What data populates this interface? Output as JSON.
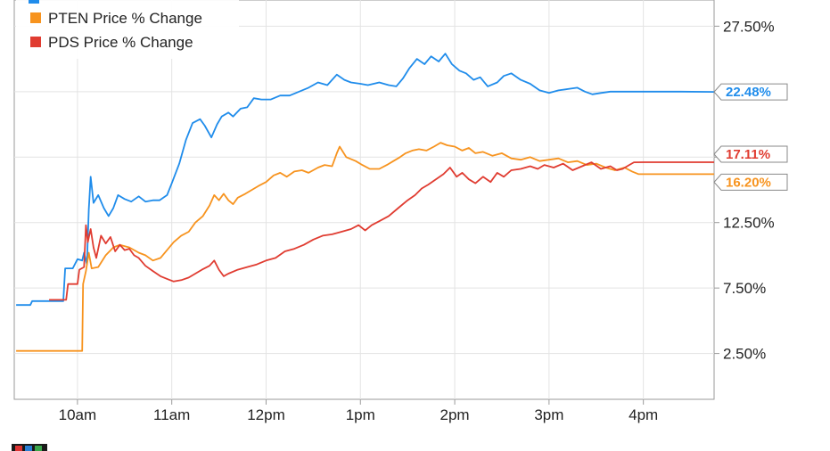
{
  "chart_data": {
    "type": "line",
    "title": "",
    "xlabel": "",
    "ylabel": "",
    "x_ticks": [
      "10am",
      "11am",
      "12pm",
      "1pm",
      "2pm",
      "3pm",
      "4pm"
    ],
    "y_ticks": [
      "2.50%",
      "7.50%",
      "12.50%",
      "17.50%",
      "22.50%",
      "27.50%"
    ],
    "ylim": [
      -1,
      29.5
    ],
    "xlim": [
      9.33,
      16.75
    ],
    "grid": true,
    "legend_position": "top-left",
    "series": [
      {
        "name": "",
        "color": "#1f8ceb",
        "end_value": 22.48,
        "end_label": "22.48%",
        "points": [
          [
            9.35,
            6.2
          ],
          [
            9.5,
            6.2
          ],
          [
            9.52,
            6.5
          ],
          [
            9.85,
            6.5
          ],
          [
            9.87,
            9.0
          ],
          [
            9.95,
            9.0
          ],
          [
            10.0,
            9.7
          ],
          [
            10.05,
            9.6
          ],
          [
            10.07,
            10.2
          ],
          [
            10.1,
            9.3
          ],
          [
            10.12,
            13.5
          ],
          [
            10.14,
            16.0
          ],
          [
            10.17,
            14.0
          ],
          [
            10.22,
            14.6
          ],
          [
            10.28,
            13.6
          ],
          [
            10.33,
            13.0
          ],
          [
            10.38,
            13.6
          ],
          [
            10.43,
            14.6
          ],
          [
            10.5,
            14.3
          ],
          [
            10.57,
            14.1
          ],
          [
            10.65,
            14.5
          ],
          [
            10.72,
            14.1
          ],
          [
            10.8,
            14.2
          ],
          [
            10.87,
            14.2
          ],
          [
            10.95,
            14.6
          ],
          [
            11.0,
            15.5
          ],
          [
            11.08,
            17.0
          ],
          [
            11.15,
            18.8
          ],
          [
            11.22,
            20.1
          ],
          [
            11.3,
            20.4
          ],
          [
            11.35,
            19.9
          ],
          [
            11.42,
            19.0
          ],
          [
            11.48,
            20.0
          ],
          [
            11.53,
            20.6
          ],
          [
            11.6,
            20.9
          ],
          [
            11.65,
            20.6
          ],
          [
            11.73,
            21.2
          ],
          [
            11.8,
            21.3
          ],
          [
            11.87,
            22.0
          ],
          [
            11.95,
            21.9
          ],
          [
            12.05,
            21.9
          ],
          [
            12.15,
            22.2
          ],
          [
            12.25,
            22.2
          ],
          [
            12.35,
            22.5
          ],
          [
            12.45,
            22.8
          ],
          [
            12.55,
            23.2
          ],
          [
            12.65,
            23.0
          ],
          [
            12.75,
            23.8
          ],
          [
            12.83,
            23.4
          ],
          [
            12.9,
            23.2
          ],
          [
            13.0,
            23.1
          ],
          [
            13.08,
            23.0
          ],
          [
            13.2,
            23.2
          ],
          [
            13.3,
            23.0
          ],
          [
            13.38,
            22.9
          ],
          [
            13.45,
            23.5
          ],
          [
            13.52,
            24.3
          ],
          [
            13.6,
            25.0
          ],
          [
            13.68,
            24.6
          ],
          [
            13.75,
            25.2
          ],
          [
            13.83,
            24.8
          ],
          [
            13.9,
            25.4
          ],
          [
            13.97,
            24.6
          ],
          [
            14.05,
            24.1
          ],
          [
            14.12,
            23.9
          ],
          [
            14.2,
            23.4
          ],
          [
            14.27,
            23.6
          ],
          [
            14.35,
            22.9
          ],
          [
            14.45,
            23.2
          ],
          [
            14.52,
            23.7
          ],
          [
            14.6,
            23.9
          ],
          [
            14.7,
            23.4
          ],
          [
            14.8,
            23.1
          ],
          [
            14.9,
            22.6
          ],
          [
            15.0,
            22.4
          ],
          [
            15.1,
            22.6
          ],
          [
            15.2,
            22.7
          ],
          [
            15.3,
            22.8
          ],
          [
            15.38,
            22.5
          ],
          [
            15.46,
            22.3
          ],
          [
            15.55,
            22.4
          ],
          [
            15.65,
            22.5
          ],
          [
            15.8,
            22.5
          ],
          [
            16.0,
            22.5
          ],
          [
            16.4,
            22.5
          ],
          [
            16.75,
            22.48
          ]
        ]
      },
      {
        "name": "PTEN Price % Change",
        "color": "#f7931e",
        "end_value": 16.2,
        "end_label": "16.20%",
        "points": [
          [
            9.35,
            2.7
          ],
          [
            10.05,
            2.7
          ],
          [
            10.06,
            7.8
          ],
          [
            10.09,
            8.8
          ],
          [
            10.12,
            10.2
          ],
          [
            10.15,
            9.0
          ],
          [
            10.22,
            9.1
          ],
          [
            10.3,
            10.0
          ],
          [
            10.38,
            10.6
          ],
          [
            10.45,
            10.8
          ],
          [
            10.55,
            10.6
          ],
          [
            10.65,
            10.2
          ],
          [
            10.72,
            10.0
          ],
          [
            10.8,
            9.6
          ],
          [
            10.88,
            9.8
          ],
          [
            10.95,
            10.4
          ],
          [
            11.02,
            11.0
          ],
          [
            11.1,
            11.5
          ],
          [
            11.18,
            11.8
          ],
          [
            11.25,
            12.5
          ],
          [
            11.33,
            13.0
          ],
          [
            11.4,
            13.8
          ],
          [
            11.45,
            14.6
          ],
          [
            11.5,
            14.2
          ],
          [
            11.55,
            14.7
          ],
          [
            11.6,
            14.2
          ],
          [
            11.65,
            13.9
          ],
          [
            11.7,
            14.4
          ],
          [
            11.78,
            14.7
          ],
          [
            11.85,
            15.0
          ],
          [
            11.92,
            15.3
          ],
          [
            12.0,
            15.6
          ],
          [
            12.08,
            16.1
          ],
          [
            12.15,
            16.3
          ],
          [
            12.22,
            16.0
          ],
          [
            12.3,
            16.4
          ],
          [
            12.38,
            16.5
          ],
          [
            12.45,
            16.3
          ],
          [
            12.55,
            16.7
          ],
          [
            12.62,
            16.9
          ],
          [
            12.7,
            16.8
          ],
          [
            12.75,
            17.8
          ],
          [
            12.78,
            18.3
          ],
          [
            12.85,
            17.5
          ],
          [
            12.95,
            17.2
          ],
          [
            13.02,
            16.9
          ],
          [
            13.1,
            16.6
          ],
          [
            13.2,
            16.6
          ],
          [
            13.28,
            16.9
          ],
          [
            13.35,
            17.2
          ],
          [
            13.42,
            17.5
          ],
          [
            13.48,
            17.8
          ],
          [
            13.55,
            18.0
          ],
          [
            13.62,
            18.1
          ],
          [
            13.7,
            18.0
          ],
          [
            13.78,
            18.3
          ],
          [
            13.85,
            18.6
          ],
          [
            13.92,
            18.4
          ],
          [
            14.0,
            18.3
          ],
          [
            14.08,
            18.0
          ],
          [
            14.15,
            18.2
          ],
          [
            14.22,
            17.8
          ],
          [
            14.3,
            17.9
          ],
          [
            14.4,
            17.6
          ],
          [
            14.5,
            17.8
          ],
          [
            14.6,
            17.4
          ],
          [
            14.7,
            17.3
          ],
          [
            14.8,
            17.5
          ],
          [
            14.9,
            17.2
          ],
          [
            15.0,
            17.3
          ],
          [
            15.1,
            17.4
          ],
          [
            15.2,
            17.1
          ],
          [
            15.3,
            17.2
          ],
          [
            15.4,
            16.9
          ],
          [
            15.5,
            17.0
          ],
          [
            15.6,
            16.7
          ],
          [
            15.7,
            16.5
          ],
          [
            15.8,
            16.7
          ],
          [
            15.88,
            16.4
          ],
          [
            15.95,
            16.2
          ],
          [
            16.0,
            16.2
          ],
          [
            16.4,
            16.2
          ],
          [
            16.75,
            16.2
          ]
        ]
      },
      {
        "name": "PDS Price % Change",
        "color": "#e03c31",
        "end_value": 17.11,
        "end_label": "17.11%",
        "points": [
          [
            9.7,
            6.6
          ],
          [
            9.88,
            6.6
          ],
          [
            9.9,
            7.8
          ],
          [
            10.0,
            7.8
          ],
          [
            10.02,
            8.9
          ],
          [
            10.07,
            9.1
          ],
          [
            10.09,
            12.3
          ],
          [
            10.11,
            11.0
          ],
          [
            10.14,
            12.0
          ],
          [
            10.17,
            10.6
          ],
          [
            10.2,
            9.8
          ],
          [
            10.25,
            11.5
          ],
          [
            10.3,
            10.9
          ],
          [
            10.35,
            11.4
          ],
          [
            10.4,
            10.3
          ],
          [
            10.45,
            10.8
          ],
          [
            10.5,
            10.4
          ],
          [
            10.55,
            10.5
          ],
          [
            10.6,
            10.0
          ],
          [
            10.65,
            9.8
          ],
          [
            10.72,
            9.2
          ],
          [
            10.8,
            8.8
          ],
          [
            10.88,
            8.4
          ],
          [
            10.95,
            8.2
          ],
          [
            11.02,
            8.0
          ],
          [
            11.1,
            8.1
          ],
          [
            11.18,
            8.3
          ],
          [
            11.25,
            8.6
          ],
          [
            11.32,
            8.9
          ],
          [
            11.4,
            9.2
          ],
          [
            11.45,
            9.6
          ],
          [
            11.5,
            8.9
          ],
          [
            11.55,
            8.4
          ],
          [
            11.6,
            8.6
          ],
          [
            11.7,
            8.9
          ],
          [
            11.8,
            9.1
          ],
          [
            11.9,
            9.3
          ],
          [
            12.0,
            9.6
          ],
          [
            12.1,
            9.8
          ],
          [
            12.2,
            10.3
          ],
          [
            12.3,
            10.5
          ],
          [
            12.4,
            10.8
          ],
          [
            12.5,
            11.2
          ],
          [
            12.6,
            11.5
          ],
          [
            12.7,
            11.6
          ],
          [
            12.8,
            11.8
          ],
          [
            12.9,
            12.0
          ],
          [
            12.98,
            12.3
          ],
          [
            13.05,
            11.9
          ],
          [
            13.12,
            12.3
          ],
          [
            13.2,
            12.6
          ],
          [
            13.3,
            13.0
          ],
          [
            13.4,
            13.6
          ],
          [
            13.5,
            14.2
          ],
          [
            13.58,
            14.6
          ],
          [
            13.65,
            15.1
          ],
          [
            13.72,
            15.4
          ],
          [
            13.8,
            15.8
          ],
          [
            13.88,
            16.2
          ],
          [
            13.95,
            16.7
          ],
          [
            14.02,
            16.0
          ],
          [
            14.08,
            16.3
          ],
          [
            14.15,
            15.8
          ],
          [
            14.22,
            15.5
          ],
          [
            14.3,
            16.0
          ],
          [
            14.38,
            15.6
          ],
          [
            14.45,
            16.3
          ],
          [
            14.52,
            16.0
          ],
          [
            14.6,
            16.5
          ],
          [
            14.7,
            16.6
          ],
          [
            14.8,
            16.8
          ],
          [
            14.88,
            16.6
          ],
          [
            14.95,
            16.9
          ],
          [
            15.05,
            16.7
          ],
          [
            15.15,
            17.0
          ],
          [
            15.25,
            16.5
          ],
          [
            15.35,
            16.8
          ],
          [
            15.45,
            17.1
          ],
          [
            15.55,
            16.6
          ],
          [
            15.65,
            16.8
          ],
          [
            15.72,
            16.5
          ],
          [
            15.78,
            16.6
          ],
          [
            15.85,
            16.9
          ],
          [
            15.9,
            17.1
          ],
          [
            16.0,
            17.11
          ],
          [
            16.4,
            17.11
          ],
          [
            16.75,
            17.11
          ]
        ]
      }
    ]
  }
}
